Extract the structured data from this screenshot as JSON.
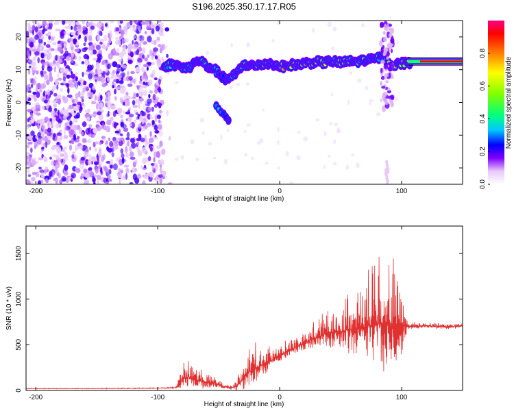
{
  "title": "S196.2025.350.17.17.R05",
  "chart_data": [
    {
      "type": "heatmap",
      "name": "spectrogram",
      "xlabel": "Height of straight line (km)",
      "ylabel": "Frequency (Hz)",
      "xlim": [
        -208,
        150
      ],
      "ylim": [
        -25,
        25
      ],
      "xticks": [
        -200,
        -100,
        0,
        100
      ],
      "yticks": [
        -20,
        -10,
        0,
        10,
        20
      ],
      "colorbar": {
        "label": "Normalized spectral amplitude",
        "range": [
          0,
          1
        ],
        "ticks": [
          0.0,
          0.2,
          0.4,
          0.6,
          0.8
        ],
        "tick_labels": [
          "0.0",
          "0.2",
          "0.4",
          "0.6",
          "0.8"
        ]
      },
      "noise_region_x": [
        -208,
        -95
      ],
      "trace": {
        "x": [
          -95,
          -90,
          -85,
          -80,
          -75,
          -70,
          -65,
          -60,
          -55,
          -50,
          -45,
          -40,
          -35,
          -30,
          -25,
          -20,
          -15,
          -10,
          -5,
          0,
          5,
          10,
          15,
          20,
          25,
          30,
          35,
          40,
          45,
          50,
          55,
          60,
          65,
          70,
          75,
          80,
          85,
          90,
          95,
          100,
          105,
          110,
          115,
          120,
          130,
          140,
          150
        ],
        "frequency": [
          11,
          11.5,
          11.5,
          10.5,
          10.5,
          12,
          13,
          11,
          10.5,
          9,
          7,
          7.5,
          9,
          11.5,
          11.5,
          11,
          11.5,
          12,
          11.5,
          11,
          11,
          11.5,
          11.5,
          12,
          12,
          12.5,
          12,
          12.5,
          12.5,
          12,
          12.5,
          12.5,
          12.5,
          13,
          13,
          13.5,
          14,
          11.5,
          11.5,
          12,
          12,
          12.5,
          12.5,
          12.5,
          12.5,
          12.5,
          12.5
        ],
        "amplitude": [
          0.45,
          0.5,
          0.5,
          0.4,
          0.45,
          0.5,
          0.5,
          0.45,
          0.4,
          0.35,
          0.3,
          0.35,
          0.45,
          0.6,
          0.65,
          0.7,
          0.8,
          0.85,
          0.85,
          0.9,
          0.8,
          0.8,
          0.85,
          0.85,
          0.8,
          0.8,
          0.75,
          0.75,
          0.7,
          0.7,
          0.65,
          0.6,
          0.6,
          0.55,
          0.5,
          0.45,
          0.4,
          0.6,
          0.7,
          0.8,
          0.85,
          0.9,
          0.95,
          0.95,
          0.95,
          0.95,
          0.95
        ]
      },
      "secondary_trace": {
        "x": [
          -52,
          -50,
          -48,
          -46,
          -44,
          -42
        ],
        "frequency": [
          -1,
          -2,
          -3,
          -3.5,
          -4.5,
          -5.5
        ],
        "amplitude": [
          0.35,
          0.4,
          0.35,
          0.3,
          0.25,
          0.2
        ]
      }
    },
    {
      "type": "line",
      "name": "snr",
      "xlabel": "Height of straight line (km)",
      "ylabel": "SNR (10 * v/v)",
      "xlim": [
        -208,
        150
      ],
      "ylim": [
        0,
        1800
      ],
      "xticks": [
        -200,
        -100,
        0,
        100
      ],
      "yticks": [
        0,
        500,
        1000,
        1500
      ],
      "color": "#e03030",
      "envelope": {
        "x": [
          -208,
          -150,
          -100,
          -85,
          -80,
          -75,
          -70,
          -65,
          -60,
          -55,
          -50,
          -45,
          -40,
          -35,
          -30,
          -25,
          -20,
          -10,
          0,
          10,
          20,
          30,
          40,
          50,
          60,
          70,
          75,
          80,
          85,
          90,
          95,
          100,
          105,
          110,
          120,
          130,
          140,
          150
        ],
        "base": [
          20,
          20,
          25,
          30,
          120,
          150,
          120,
          110,
          80,
          90,
          60,
          40,
          30,
          50,
          120,
          200,
          250,
          300,
          380,
          450,
          520,
          580,
          630,
          650,
          670,
          700,
          720,
          730,
          740,
          740,
          720,
          720,
          700,
          700,
          710,
          700,
          700,
          710
        ],
        "amplitude": [
          5,
          5,
          8,
          10,
          200,
          180,
          150,
          160,
          120,
          100,
          60,
          30,
          40,
          100,
          200,
          300,
          280,
          200,
          140,
          120,
          130,
          200,
          300,
          400,
          500,
          600,
          650,
          900,
          1000,
          700,
          800,
          600,
          60,
          50,
          50,
          50,
          50,
          50
        ]
      }
    }
  ]
}
